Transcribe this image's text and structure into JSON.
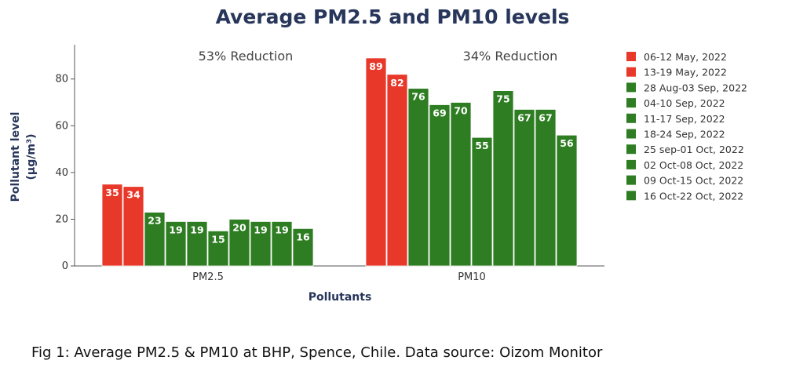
{
  "chart_data": {
    "type": "bar",
    "title": "Average PM2.5 and PM10 levels",
    "xlabel": "Pollutants",
    "ylabel": "Pollutant level",
    "ylabel_unit": "(µg/m³)",
    "ylim": [
      0,
      93
    ],
    "yticks": [
      0,
      20,
      40,
      60,
      80
    ],
    "grid": false,
    "legend_position": "right",
    "categories": [
      "PM2.5",
      "PM10"
    ],
    "annotations": [
      "53% Reduction",
      "34% Reduction"
    ],
    "series": [
      {
        "name": "06-12 May, 2022",
        "color": "#e8382a",
        "values": [
          35,
          89
        ]
      },
      {
        "name": "13-19 May, 2022",
        "color": "#e8382a",
        "values": [
          34,
          82
        ]
      },
      {
        "name": "28 Aug-03 Sep, 2022",
        "color": "#2e7d22",
        "values": [
          23,
          76
        ]
      },
      {
        "name": "04-10 Sep, 2022",
        "color": "#2e7d22",
        "values": [
          19,
          69
        ]
      },
      {
        "name": "11-17 Sep, 2022",
        "color": "#2e7d22",
        "values": [
          19,
          70
        ]
      },
      {
        "name": "18-24 Sep, 2022",
        "color": "#2e7d22",
        "values": [
          15,
          55
        ]
      },
      {
        "name": "25 sep-01 Oct, 2022",
        "color": "#2e7d22",
        "values": [
          20,
          75
        ]
      },
      {
        "name": "02 Oct-08 Oct, 2022",
        "color": "#2e7d22",
        "values": [
          19,
          67
        ]
      },
      {
        "name": "09 Oct-15 Oct, 2022",
        "color": "#2e7d22",
        "values": [
          19,
          67
        ]
      },
      {
        "name": "16 Oct-22 Oct, 2022",
        "color": "#2e7d22",
        "values": [
          16,
          56
        ]
      }
    ]
  },
  "caption": "Fig 1: Average PM2.5 & PM10 at BHP, Spence, Chile. Data source: Oizom Monitor"
}
